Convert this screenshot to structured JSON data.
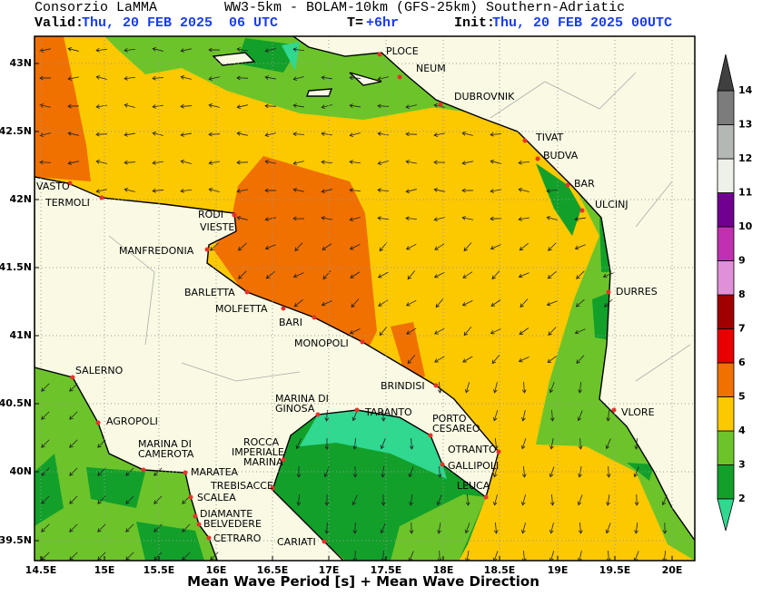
{
  "header": {
    "org": "Consorzio LaMMA",
    "model": "WW3-5km - BOLAM-10km (GFS-25km) Southern-Adriatic",
    "valid_label": "Valid:",
    "valid_time": "Thu, 20 FEB 2025  06 UTC",
    "step_label": "T=",
    "step": "+6hr",
    "init_label": "Init:",
    "init_time": "Thu, 20 FEB 2025 00UTC"
  },
  "map": {
    "lat_labels": [
      "43N",
      "42.5N",
      "42N",
      "41.5N",
      "41N",
      "40.5N",
      "40N",
      "39.5N"
    ],
    "lon_labels": [
      "14.5E",
      "15E",
      "15.5E",
      "16E",
      "16.5E",
      "17E",
      "17.5E",
      "18E",
      "18.5E",
      "19E",
      "19.5E",
      "20E"
    ],
    "cities": [
      {
        "lines": [
          "PLOCE"
        ]
      },
      {
        "lines": [
          "NEUM"
        ]
      },
      {
        "lines": [
          "DUBROVNIK"
        ]
      },
      {
        "lines": [
          "TIVAT"
        ]
      },
      {
        "lines": [
          "BUDVA"
        ]
      },
      {
        "lines": [
          "BAR"
        ]
      },
      {
        "lines": [
          "ULCINJ"
        ]
      },
      {
        "lines": [
          "DURRES"
        ]
      },
      {
        "lines": [
          "VLORE"
        ]
      },
      {
        "lines": [
          "VASTO"
        ]
      },
      {
        "lines": [
          "TERMOLI"
        ]
      },
      {
        "lines": [
          "RODI"
        ]
      },
      {
        "lines": [
          "VIESTE"
        ]
      },
      {
        "lines": [
          "MANFREDONIA"
        ]
      },
      {
        "lines": [
          "BARLETTA"
        ]
      },
      {
        "lines": [
          "MOLFETTA"
        ]
      },
      {
        "lines": [
          "BARI"
        ]
      },
      {
        "lines": [
          "MONOPOLI"
        ]
      },
      {
        "lines": [
          "BRINDISI"
        ]
      },
      {
        "lines": [
          "SALERNO"
        ]
      },
      {
        "lines": [
          "AGROPOLI"
        ]
      },
      {
        "lines": [
          "MARINA DI",
          "CAMEROTA"
        ]
      },
      {
        "lines": [
          "MARATEA"
        ]
      },
      {
        "lines": [
          "SCALEA"
        ]
      },
      {
        "lines": [
          "DIAMANTE"
        ]
      },
      {
        "lines": [
          "BELVEDERE"
        ]
      },
      {
        "lines": [
          "CETRARO"
        ]
      },
      {
        "lines": [
          "TREBISACCE"
        ]
      },
      {
        "lines": [
          "ROCCA",
          "IMPERIALE",
          "MARINA"
        ]
      },
      {
        "lines": [
          "MARINA DI",
          "GINOSA"
        ]
      },
      {
        "lines": [
          "TARANTO"
        ]
      },
      {
        "lines": [
          "PORTO",
          "CESAREO"
        ]
      },
      {
        "lines": [
          "OTRANTO"
        ]
      },
      {
        "lines": [
          "GALLIPOLI"
        ]
      },
      {
        "lines": [
          "LEUCA"
        ]
      },
      {
        "lines": [
          "CARIATI"
        ]
      }
    ]
  },
  "colorbar": {
    "ticks": [
      2,
      3,
      4,
      5,
      6,
      7,
      8,
      9,
      10,
      11,
      12,
      13,
      14
    ],
    "colors": [
      "#12a02a",
      "#6cc42a",
      "#fcc800",
      "#f07000",
      "#e80000",
      "#a00000",
      "#e090d8",
      "#c030b0",
      "#700090",
      "#eef0ea",
      "#b4b8b4",
      "#7c7c7c"
    ],
    "under_color": "#30d890",
    "over_color": "#404040"
  },
  "footer": "Mean Wave Period [s] + Mean Wave Direction"
}
